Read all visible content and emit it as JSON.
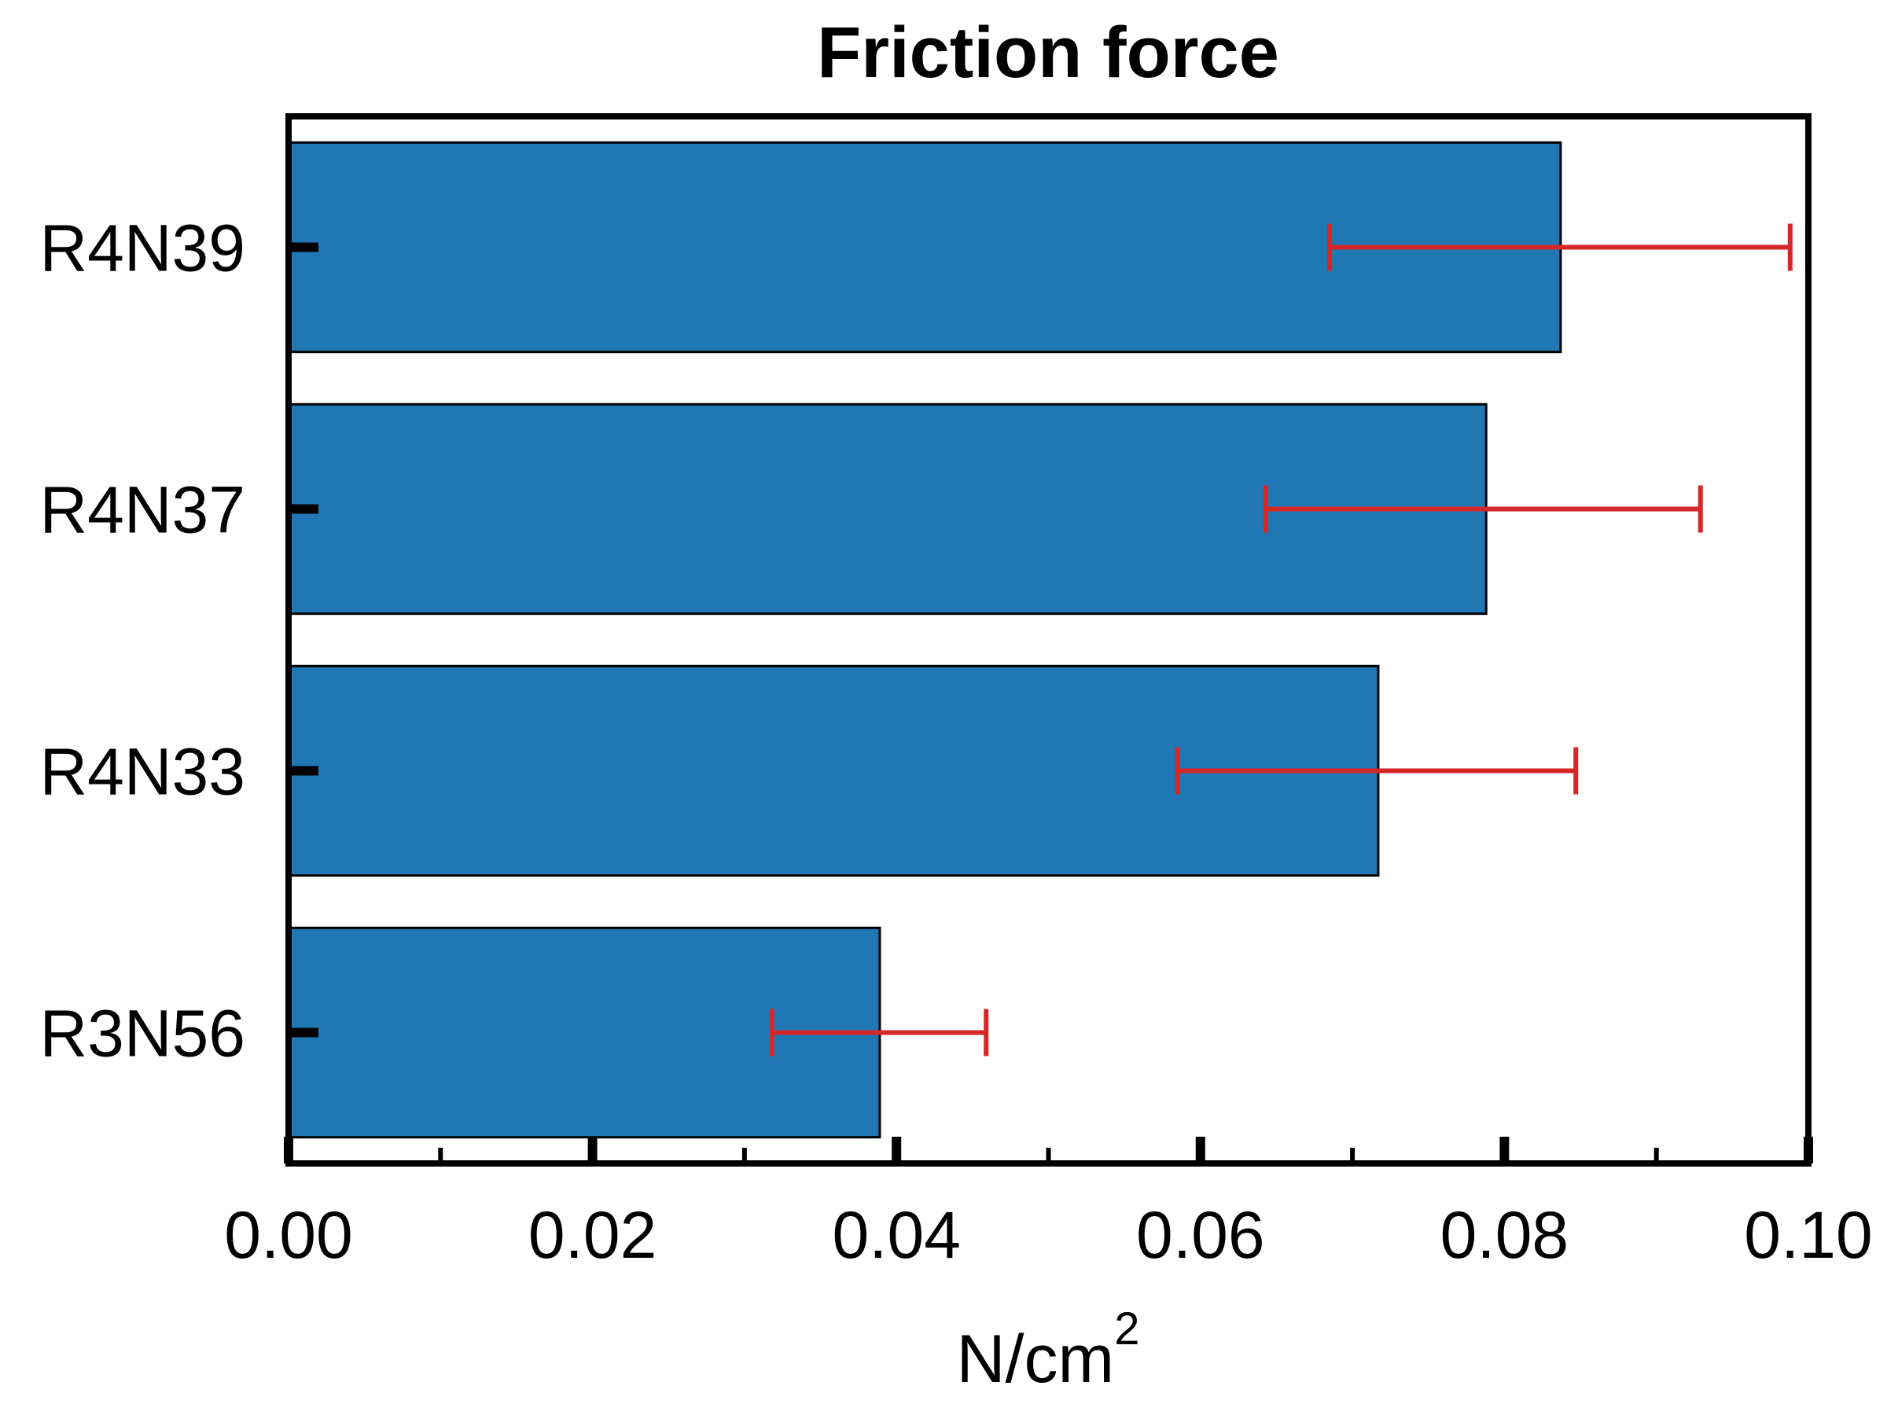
{
  "chart_data": {
    "type": "bar",
    "orientation": "horizontal",
    "title": "Friction force",
    "xlabel": "N/cm",
    "xlabel_superscript": "2",
    "ylabel": "",
    "categories": [
      "R4N39",
      "R4N37",
      "R4N33",
      "R3N56"
    ],
    "values": [
      0.0837,
      0.0788,
      0.0717,
      0.0389
    ],
    "error_low": [
      0.0685,
      0.0643,
      0.0585,
      0.0318
    ],
    "error_high": [
      0.0988,
      0.0929,
      0.0847,
      0.0459
    ],
    "xlim": [
      0.0,
      0.1
    ],
    "x_ticks": [
      "0.00",
      "0.02",
      "0.04",
      "0.06",
      "0.08",
      "0.10"
    ],
    "x_tick_values": [
      0,
      0.02,
      0.04,
      0.06,
      0.08,
      0.1
    ],
    "x_minor_tick_values": [
      0.01,
      0.03,
      0.05,
      0.07,
      0.09
    ],
    "grid": false,
    "legend": "none",
    "colors": {
      "bar": "#2077b4",
      "bar_edge": "#000000",
      "error_bar": "#d62728",
      "axis": "#000000"
    }
  }
}
